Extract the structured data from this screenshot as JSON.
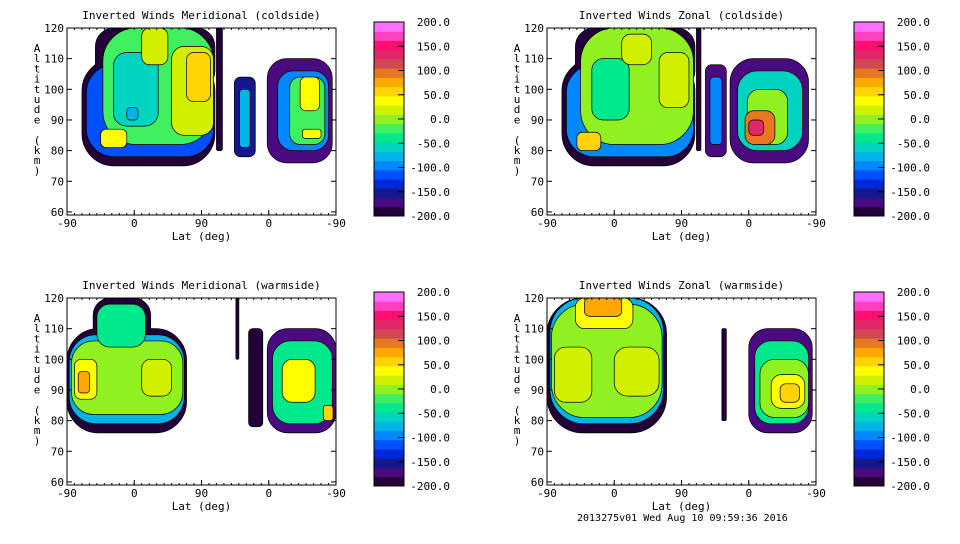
{
  "footer": "2013275v01 Wed Aug 10 09:59:36 2016",
  "chart_data": {
    "type": "heatmap",
    "subtype": "filled-contour",
    "x_note": "x positions are along-track units 0-360 mapping to latitude ticks -90, 0, 90, 0, -90",
    "xlabel": "Lat (deg)",
    "ylabel": "Altitude (km)",
    "xticks": [
      "-90",
      "0",
      "90",
      "0",
      "-90"
    ],
    "yticks": [
      "60",
      "70",
      "80",
      "90",
      "100",
      "110",
      "120"
    ],
    "ylim": [
      59,
      120
    ],
    "colorbar": {
      "ticks": [
        "200.0",
        "150.0",
        "100.0",
        "50.0",
        "0.0",
        "-50.0",
        "-100.0",
        "-150.0",
        "-200.0"
      ],
      "range": [
        -200,
        200
      ],
      "colors": [
        "#220038",
        "#4a0a80",
        "#14188c",
        "#0028d8",
        "#0050ff",
        "#0088ff",
        "#00b4e6",
        "#00d4c0",
        "#00e88c",
        "#40f060",
        "#90f020",
        "#d0f000",
        "#ffff00",
        "#ffd400",
        "#ffa800",
        "#e87820",
        "#d04850",
        "#e02868",
        "#ff1070",
        "#ff40c0",
        "#ff70ff"
      ]
    },
    "panels": [
      {
        "title": "Inverted Winds Meridional (coldside)",
        "regions": [
          {
            "x0": 20,
            "x1": 198,
            "y0": 75,
            "y1": 110,
            "v": -190
          },
          {
            "x0": 38,
            "x1": 198,
            "y0": 100,
            "y1": 120,
            "v": -190
          },
          {
            "x0": 26,
            "x1": 196,
            "y0": 78,
            "y1": 108,
            "v": -120
          },
          {
            "x0": 48,
            "x1": 196,
            "y0": 82,
            "y1": 120,
            "v": -10
          },
          {
            "x0": 62,
            "x1": 122,
            "y0": 88,
            "y1": 112,
            "v": -45
          },
          {
            "x0": 80,
            "x1": 95,
            "y0": 90,
            "y1": 94,
            "v": -70
          },
          {
            "x0": 140,
            "x1": 196,
            "y0": 85,
            "y1": 114,
            "v": 30
          },
          {
            "x0": 160,
            "x1": 192,
            "y0": 96,
            "y1": 112,
            "v": 60
          },
          {
            "x0": 100,
            "x1": 135,
            "y0": 108,
            "y1": 120,
            "v": 30
          },
          {
            "x0": 45,
            "x1": 80,
            "y0": 81,
            "y1": 87,
            "v": 50
          },
          {
            "x0": 200,
            "x1": 208,
            "y0": 80,
            "y1": 120,
            "v": -200
          },
          {
            "x0": 224,
            "x1": 252,
            "y0": 78,
            "y1": 104,
            "v": -160
          },
          {
            "x0": 231,
            "x1": 245,
            "y0": 81,
            "y1": 100,
            "v": -80
          },
          {
            "x0": 268,
            "x1": 355,
            "y0": 76,
            "y1": 110,
            "v": -170
          },
          {
            "x0": 282,
            "x1": 350,
            "y0": 80,
            "y1": 106,
            "v": -90
          },
          {
            "x0": 298,
            "x1": 345,
            "y0": 82,
            "y1": 104,
            "v": -20
          },
          {
            "x0": 312,
            "x1": 338,
            "y0": 93,
            "y1": 104,
            "v": 50
          },
          {
            "x0": 315,
            "x1": 340,
            "y0": 84,
            "y1": 87,
            "v": 40
          }
        ]
      },
      {
        "title": "Inverted Winds Zonal (coldside)",
        "regions": [
          {
            "x0": 20,
            "x1": 198,
            "y0": 75,
            "y1": 110,
            "v": -190
          },
          {
            "x0": 38,
            "x1": 198,
            "y0": 100,
            "y1": 120,
            "v": -190
          },
          {
            "x0": 26,
            "x1": 196,
            "y0": 78,
            "y1": 108,
            "v": -90
          },
          {
            "x0": 45,
            "x1": 196,
            "y0": 82,
            "y1": 120,
            "v": 0
          },
          {
            "x0": 60,
            "x1": 110,
            "y0": 90,
            "y1": 110,
            "v": -40
          },
          {
            "x0": 100,
            "x1": 140,
            "y0": 108,
            "y1": 118,
            "v": 30
          },
          {
            "x0": 150,
            "x1": 190,
            "y0": 94,
            "y1": 112,
            "v": 30
          },
          {
            "x0": 40,
            "x1": 72,
            "y0": 80,
            "y1": 86,
            "v": 60
          },
          {
            "x0": 200,
            "x1": 206,
            "y0": 80,
            "y1": 120,
            "v": -200
          },
          {
            "x0": 212,
            "x1": 240,
            "y0": 78,
            "y1": 108,
            "v": -170
          },
          {
            "x0": 218,
            "x1": 234,
            "y0": 82,
            "y1": 104,
            "v": -90
          },
          {
            "x0": 245,
            "x1": 350,
            "y0": 76,
            "y1": 110,
            "v": -170
          },
          {
            "x0": 255,
            "x1": 342,
            "y0": 80,
            "y1": 106,
            "v": -60
          },
          {
            "x0": 268,
            "x1": 322,
            "y0": 82,
            "y1": 100,
            "v": 0
          },
          {
            "x0": 265,
            "x1": 305,
            "y0": 82,
            "y1": 93,
            "v": 110
          },
          {
            "x0": 270,
            "x1": 290,
            "y0": 85,
            "y1": 90,
            "v": 150
          }
        ]
      },
      {
        "title": "Inverted Winds Meridional (warmside)",
        "regions": [
          {
            "x0": 0,
            "x1": 160,
            "y0": 76,
            "y1": 110,
            "v": -190
          },
          {
            "x0": 35,
            "x1": 112,
            "y0": 100,
            "y1": 120,
            "v": -190
          },
          {
            "x0": 3,
            "x1": 157,
            "y0": 79,
            "y1": 108,
            "v": -80
          },
          {
            "x0": 6,
            "x1": 155,
            "y0": 82,
            "y1": 106,
            "v": 0
          },
          {
            "x0": 40,
            "x1": 105,
            "y0": 104,
            "y1": 118,
            "v": -40
          },
          {
            "x0": 10,
            "x1": 40,
            "y0": 87,
            "y1": 100,
            "v": 50
          },
          {
            "x0": 15,
            "x1": 30,
            "y0": 89,
            "y1": 96,
            "v": 85
          },
          {
            "x0": 100,
            "x1": 140,
            "y0": 88,
            "y1": 100,
            "v": 30
          },
          {
            "x0": 226,
            "x1": 230,
            "y0": 100,
            "y1": 120,
            "v": -200
          },
          {
            "x0": 243,
            "x1": 262,
            "y0": 78,
            "y1": 110,
            "v": -200
          },
          {
            "x0": 268,
            "x1": 360,
            "y0": 76,
            "y1": 110,
            "v": -170
          },
          {
            "x0": 275,
            "x1": 355,
            "y0": 79,
            "y1": 106,
            "v": -30
          },
          {
            "x0": 288,
            "x1": 332,
            "y0": 86,
            "y1": 100,
            "v": 40
          },
          {
            "x0": 343,
            "x1": 356,
            "y0": 80,
            "y1": 85,
            "v": 70
          }
        ]
      },
      {
        "title": "Inverted Winds Zonal (warmside)",
        "regions": [
          {
            "x0": 0,
            "x1": 160,
            "y0": 76,
            "y1": 120,
            "v": -190
          },
          {
            "x0": 4,
            "x1": 156,
            "y0": 79,
            "y1": 120,
            "v": -80
          },
          {
            "x0": 6,
            "x1": 154,
            "y0": 81,
            "y1": 118,
            "v": 0
          },
          {
            "x0": 10,
            "x1": 60,
            "y0": 86,
            "y1": 104,
            "v": 30
          },
          {
            "x0": 90,
            "x1": 150,
            "y0": 88,
            "y1": 104,
            "v": 30
          },
          {
            "x0": 38,
            "x1": 115,
            "y0": 110,
            "y1": 120,
            "v": 50
          },
          {
            "x0": 50,
            "x1": 100,
            "y0": 114,
            "y1": 120,
            "v": 80
          },
          {
            "x0": 234,
            "x1": 240,
            "y0": 80,
            "y1": 110,
            "v": -200
          },
          {
            "x0": 270,
            "x1": 355,
            "y0": 76,
            "y1": 110,
            "v": -170
          },
          {
            "x0": 278,
            "x1": 350,
            "y0": 79,
            "y1": 106,
            "v": -30
          },
          {
            "x0": 285,
            "x1": 350,
            "y0": 81,
            "y1": 100,
            "v": 0
          },
          {
            "x0": 300,
            "x1": 345,
            "y0": 84,
            "y1": 95,
            "v": 40
          },
          {
            "x0": 312,
            "x1": 338,
            "y0": 86,
            "y1": 92,
            "v": 65
          }
        ]
      }
    ]
  }
}
